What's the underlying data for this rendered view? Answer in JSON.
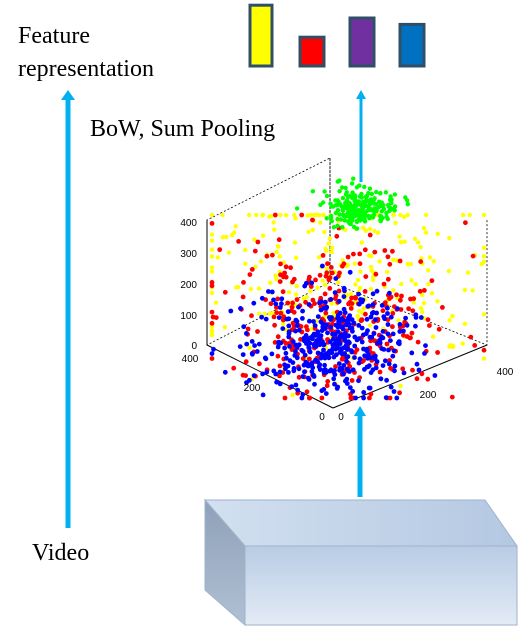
{
  "labels": {
    "feature_line1": "Feature",
    "feature_line2": "representation",
    "method": "BoW, Sum Pooling",
    "input": "Video"
  },
  "colors": {
    "arrow": "#00b0f0",
    "bar_outline": "#2f4f67",
    "bars": [
      "#ffff00",
      "#ff0000",
      "#7030a0",
      "#0070c0"
    ],
    "points": {
      "yellow": "#ffff00",
      "red": "#ff0000",
      "blue": "#0000ff",
      "green": "#00ff00"
    },
    "box_front_top": "#b8cce4",
    "box_front_bottom": "#dbe5f1",
    "box_side": "#95a8bf",
    "box_top": "#c6d7ec"
  },
  "histogram": {
    "bins": [
      {
        "name": "yellow-bin",
        "value": 0.95
      },
      {
        "name": "red-bin",
        "value": 0.45
      },
      {
        "name": "purple-bin",
        "value": 0.75
      },
      {
        "name": "blue-bin",
        "value": 0.65
      }
    ]
  },
  "scatter3d": {
    "z_ticks": [
      "0",
      "100",
      "200",
      "300",
      "400"
    ],
    "x_ticks": [
      "0",
      "200",
      "400"
    ],
    "y_ticks": [
      "0",
      "200",
      "400"
    ],
    "clusters": [
      {
        "name": "yellow",
        "count": 260
      },
      {
        "name": "red",
        "count": 320
      },
      {
        "name": "blue",
        "count": 420
      },
      {
        "name": "green",
        "count": 220
      }
    ]
  },
  "icons": {
    "box": "video-volume-icon"
  }
}
